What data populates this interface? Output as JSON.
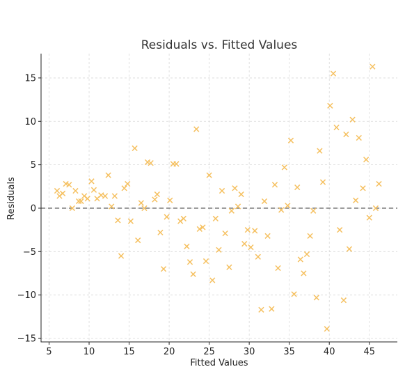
{
  "chart_data": {
    "type": "scatter",
    "title": "Residuals vs. Fitted Values",
    "xlabel": "Fitted Values",
    "ylabel": "Residuals",
    "xlim": [
      4,
      48.5
    ],
    "ylim": [
      -15.4,
      17.8
    ],
    "xticks": [
      5,
      10,
      15,
      20,
      25,
      30,
      35,
      40,
      45
    ],
    "yticks": [
      -15,
      -10,
      -5,
      0,
      5,
      10,
      15
    ],
    "xtick_labels": [
      "5",
      "10",
      "15",
      "20",
      "25",
      "30",
      "35",
      "40",
      "45"
    ],
    "ytick_labels": [
      "−15",
      "−10",
      "−5",
      "0",
      "5",
      "10",
      "15"
    ],
    "grid": true,
    "marker": "x",
    "marker_color": "#f5c060",
    "reference_line": {
      "y": 0,
      "style": "dashed",
      "color": "#7f7f7f"
    },
    "series": [
      {
        "points": [
          [
            6.0,
            2.0
          ],
          [
            6.3,
            1.4
          ],
          [
            6.7,
            1.7
          ],
          [
            7.1,
            2.8
          ],
          [
            7.5,
            2.7
          ],
          [
            7.9,
            0.0
          ],
          [
            8.3,
            2.0
          ],
          [
            8.7,
            0.8
          ],
          [
            9.0,
            0.8
          ],
          [
            9.4,
            1.4
          ],
          [
            9.8,
            1.1
          ],
          [
            10.3,
            3.1
          ],
          [
            10.6,
            2.1
          ],
          [
            11.0,
            1.1
          ],
          [
            11.5,
            1.5
          ],
          [
            12.0,
            1.4
          ],
          [
            12.4,
            3.8
          ],
          [
            12.8,
            0.2
          ],
          [
            13.2,
            1.4
          ],
          [
            13.6,
            -1.4
          ],
          [
            14.0,
            -5.5
          ],
          [
            14.4,
            2.3
          ],
          [
            14.8,
            2.8
          ],
          [
            15.2,
            -1.5
          ],
          [
            15.7,
            6.9
          ],
          [
            16.1,
            -3.7
          ],
          [
            16.5,
            0.6
          ],
          [
            16.9,
            0.0
          ],
          [
            17.3,
            5.3
          ],
          [
            17.7,
            5.2
          ],
          [
            18.2,
            1.0
          ],
          [
            18.5,
            1.6
          ],
          [
            18.9,
            -2.8
          ],
          [
            19.3,
            -7.0
          ],
          [
            19.7,
            -1.0
          ],
          [
            20.1,
            0.9
          ],
          [
            20.5,
            5.1
          ],
          [
            20.9,
            5.1
          ],
          [
            21.4,
            -1.5
          ],
          [
            21.8,
            -1.2
          ],
          [
            22.2,
            -4.4
          ],
          [
            22.6,
            -6.2
          ],
          [
            23.0,
            -7.6
          ],
          [
            23.4,
            9.1
          ],
          [
            23.8,
            -2.4
          ],
          [
            24.2,
            -2.2
          ],
          [
            24.6,
            -6.1
          ],
          [
            25.0,
            3.8
          ],
          [
            25.4,
            -8.3
          ],
          [
            25.8,
            -1.2
          ],
          [
            26.2,
            -4.8
          ],
          [
            26.6,
            2.0
          ],
          [
            27.0,
            -2.9
          ],
          [
            27.5,
            -6.8
          ],
          [
            27.8,
            -0.3
          ],
          [
            28.2,
            2.3
          ],
          [
            28.6,
            0.2
          ],
          [
            29.0,
            1.6
          ],
          [
            29.4,
            -4.1
          ],
          [
            29.8,
            -2.5
          ],
          [
            30.2,
            -4.5
          ],
          [
            30.7,
            -2.6
          ],
          [
            31.1,
            -5.6
          ],
          [
            31.5,
            -11.7
          ],
          [
            31.9,
            0.8
          ],
          [
            32.3,
            -3.2
          ],
          [
            32.8,
            -11.6
          ],
          [
            33.2,
            2.7
          ],
          [
            33.6,
            -6.9
          ],
          [
            34.0,
            -0.2
          ],
          [
            34.4,
            4.7
          ],
          [
            34.8,
            0.3
          ],
          [
            35.2,
            7.8
          ],
          [
            35.6,
            -9.9
          ],
          [
            36.0,
            2.4
          ],
          [
            36.4,
            -5.9
          ],
          [
            36.8,
            -7.5
          ],
          [
            37.2,
            -5.3
          ],
          [
            37.6,
            -3.2
          ],
          [
            38.0,
            -0.3
          ],
          [
            38.4,
            -10.3
          ],
          [
            38.8,
            6.6
          ],
          [
            39.2,
            3.0
          ],
          [
            39.7,
            -13.9
          ],
          [
            40.1,
            11.8
          ],
          [
            40.5,
            15.5
          ],
          [
            40.9,
            9.3
          ],
          [
            41.3,
            -2.5
          ],
          [
            41.8,
            -10.6
          ],
          [
            42.1,
            8.5
          ],
          [
            42.5,
            -4.7
          ],
          [
            42.9,
            10.2
          ],
          [
            43.3,
            0.9
          ],
          [
            43.7,
            8.1
          ],
          [
            44.2,
            2.3
          ],
          [
            44.6,
            5.6
          ],
          [
            45.0,
            -1.1
          ],
          [
            45.4,
            16.3
          ],
          [
            45.8,
            0.0
          ],
          [
            46.2,
            2.8
          ]
        ]
      }
    ]
  }
}
